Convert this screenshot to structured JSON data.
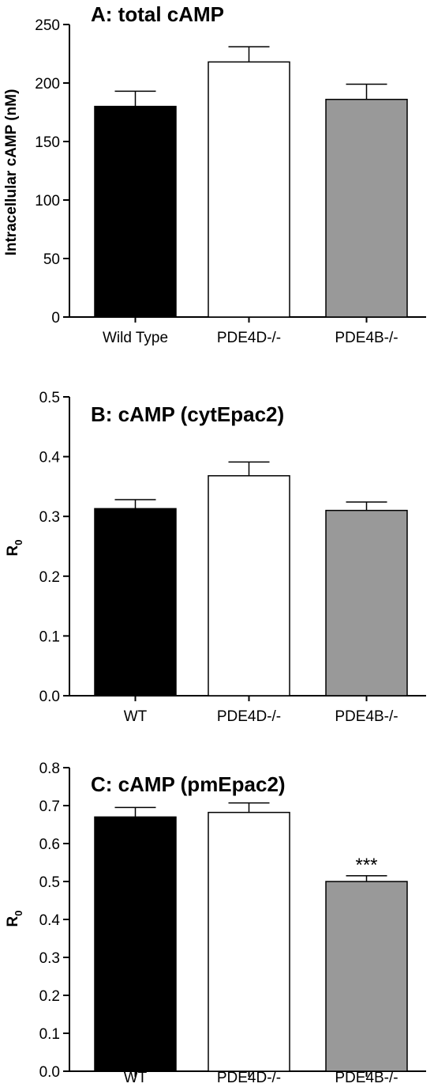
{
  "chart_data": [
    {
      "type": "bar",
      "title": "A: total cAMP",
      "ylabel": "Intracellular cAMP (nM)",
      "ylabel_sub": "",
      "categories": [
        "Wild Type",
        "PDE4D-/-",
        "PDE4B-/-"
      ],
      "values": [
        180,
        218,
        186
      ],
      "errors": [
        13,
        13,
        13
      ],
      "bar_colors": [
        "#000000",
        "#ffffff",
        "#999999"
      ],
      "ylim": [
        0,
        250
      ],
      "yticks": [
        0,
        50,
        100,
        150,
        200,
        250
      ],
      "ytick_labels": [
        "0",
        "50",
        "100",
        "150",
        "200",
        "250"
      ],
      "annotations": [
        "",
        "",
        ""
      ]
    },
    {
      "type": "bar",
      "title": "B: cAMP (cytEpac2)",
      "ylabel": "R",
      "ylabel_sub": "0",
      "categories": [
        "WT",
        "PDE4D-/-",
        "PDE4B-/-"
      ],
      "values": [
        0.313,
        0.368,
        0.31
      ],
      "errors": [
        0.015,
        0.023,
        0.014
      ],
      "bar_colors": [
        "#000000",
        "#ffffff",
        "#999999"
      ],
      "ylim": [
        0,
        0.5
      ],
      "yticks": [
        0,
        0.1,
        0.2,
        0.3,
        0.4,
        0.5
      ],
      "ytick_labels": [
        "0.0",
        "0.1",
        "0.2",
        "0.3",
        "0.4",
        "0.5"
      ],
      "annotations": [
        "",
        "",
        ""
      ]
    },
    {
      "type": "bar",
      "title": "C: cAMP (pmEpac2)",
      "ylabel": "R",
      "ylabel_sub": "0",
      "categories": [
        "WT",
        "PDE4D-/-",
        "PDE4B-/-"
      ],
      "values": [
        0.67,
        0.682,
        0.5
      ],
      "errors": [
        0.025,
        0.025,
        0.015
      ],
      "bar_colors": [
        "#000000",
        "#ffffff",
        "#999999"
      ],
      "ylim": [
        0,
        0.8
      ],
      "yticks": [
        0,
        0.1,
        0.2,
        0.3,
        0.4,
        0.5,
        0.6,
        0.7,
        0.8
      ],
      "ytick_labels": [
        "0.0",
        "0.1",
        "0.2",
        "0.3",
        "0.4",
        "0.5",
        "0.6",
        "0.7",
        "0.8"
      ],
      "annotations": [
        "",
        "",
        "***"
      ]
    }
  ]
}
